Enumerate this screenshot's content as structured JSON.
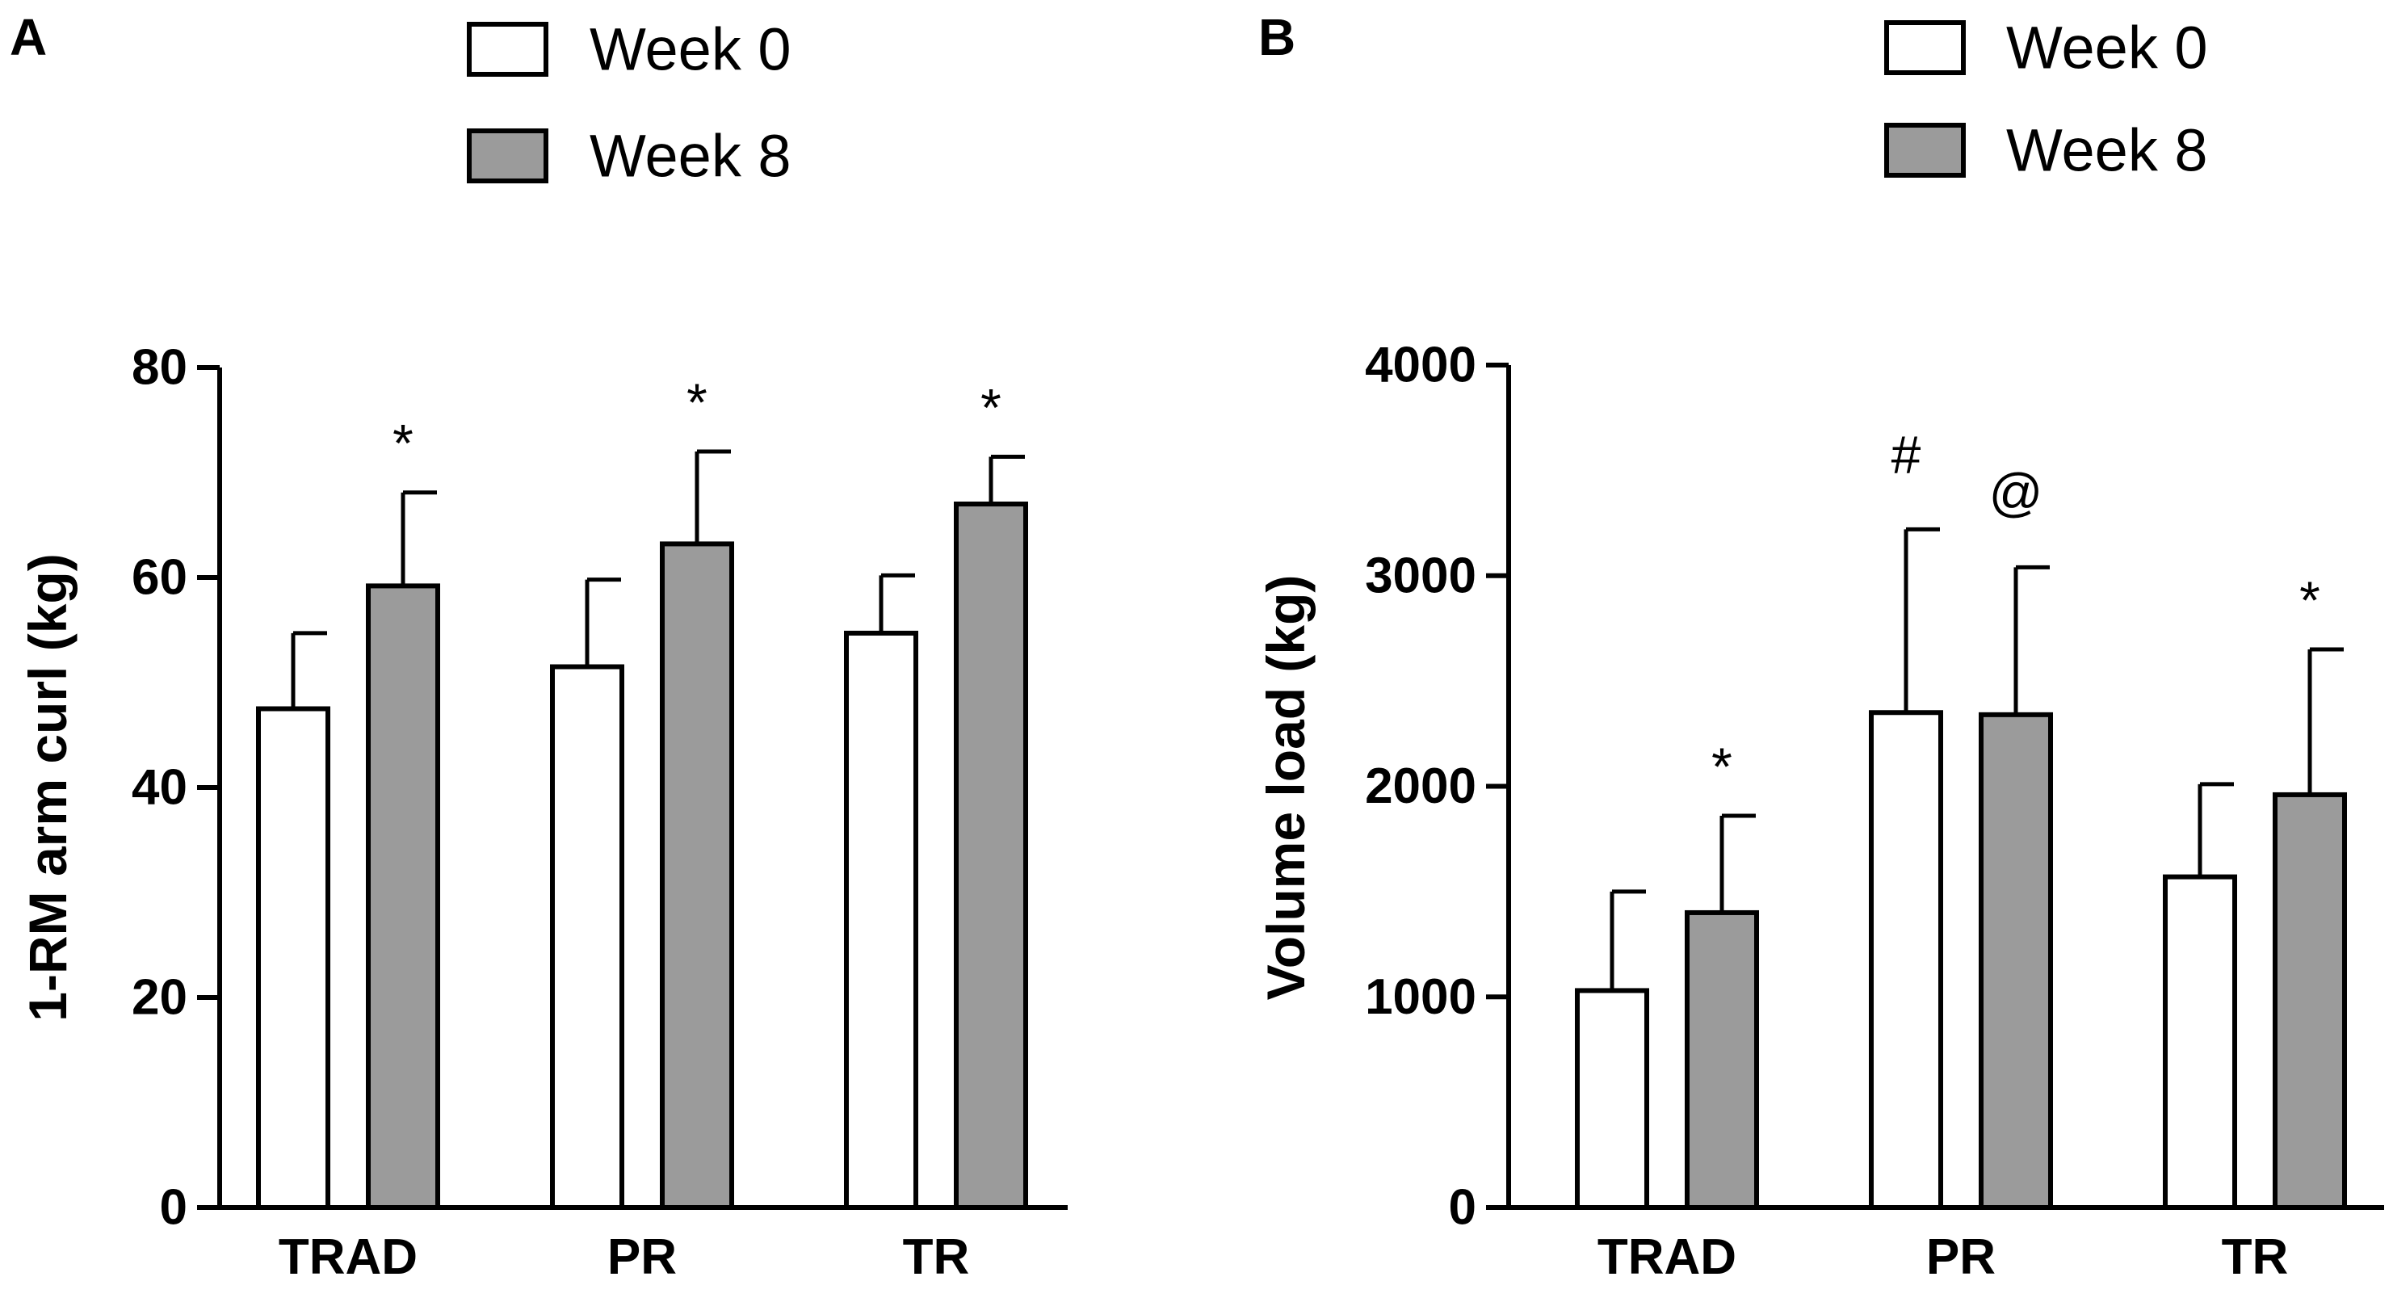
{
  "chart_data": [
    {
      "panel": "A",
      "type": "bar",
      "categories": [
        "TRAD",
        "PR",
        "TR"
      ],
      "series": [
        {
          "name": "Week 0",
          "color": "#ffffff",
          "values": [
            47.5,
            51.5,
            54.7
          ],
          "errors": [
            7.2,
            8.3,
            5.5
          ]
        },
        {
          "name": "Week 8",
          "color": "#9b9b9b",
          "values": [
            59.2,
            63.2,
            67.0
          ],
          "errors": [
            8.9,
            8.8,
            4.5
          ]
        }
      ],
      "annotations": [
        {
          "category": "TRAD",
          "series": "Week 8",
          "text": "*"
        },
        {
          "category": "PR",
          "series": "Week 8",
          "text": "*"
        },
        {
          "category": "TR",
          "series": "Week 8",
          "text": "*"
        }
      ],
      "ylabel": "1-RM arm curl (kg)",
      "xlabel": "",
      "ylim": [
        0,
        80
      ],
      "yticks": [
        "0",
        "20",
        "40",
        "60",
        "80"
      ],
      "legend_position": "top"
    },
    {
      "panel": "B",
      "type": "bar",
      "categories": [
        "TRAD",
        "PR",
        "TR"
      ],
      "series": [
        {
          "name": "Week 0",
          "color": "#ffffff",
          "values": [
            1030,
            2350,
            1570
          ],
          "errors": [
            470,
            870,
            440
          ]
        },
        {
          "name": "Week 8",
          "color": "#9b9b9b",
          "values": [
            1400,
            2340,
            1960
          ],
          "errors": [
            460,
            700,
            690
          ]
        }
      ],
      "annotations": [
        {
          "category": "PR",
          "series": "Week 0",
          "text": "#"
        },
        {
          "category": "PR",
          "series": "Week 8",
          "text": "@"
        },
        {
          "category": "TRAD",
          "series": "Week 8",
          "text": "*"
        },
        {
          "category": "TR",
          "series": "Week 8",
          "text": "*"
        }
      ],
      "ylabel": "Volume load  (kg)",
      "xlabel": "",
      "ylim": [
        0,
        4000
      ],
      "yticks": [
        "0",
        "1000",
        "2000",
        "3000",
        "4000"
      ],
      "legend_position": "top"
    }
  ]
}
